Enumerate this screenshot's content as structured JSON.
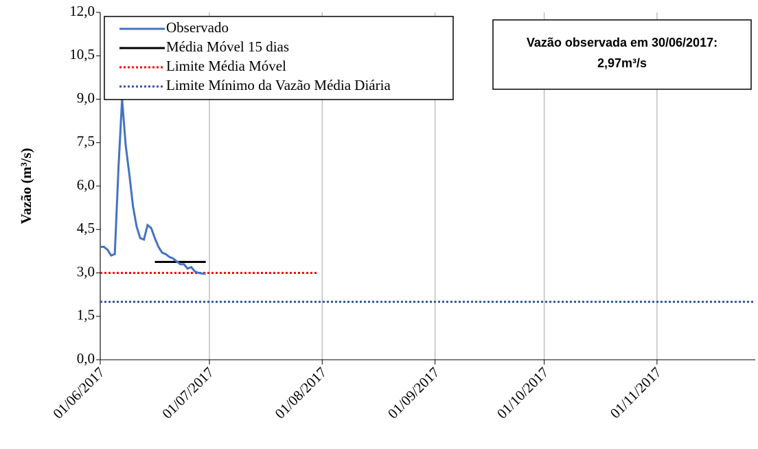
{
  "chart_data": {
    "type": "line",
    "y_label": "Vazão (m³/s)",
    "annotation": [
      "Vazão observada em 30/06/2017:",
      "2,97m³/s"
    ],
    "annotation_color": "#ff0000",
    "xlim": [
      "2017-06-01",
      "2017-11-28"
    ],
    "xticks": [
      {
        "value": "2017-06-01",
        "label": "01/06/2017"
      },
      {
        "value": "2017-07-01",
        "label": "01/07/2017"
      },
      {
        "value": "2017-08-01",
        "label": "01/08/2017"
      },
      {
        "value": "2017-09-01",
        "label": "01/09/2017"
      },
      {
        "value": "2017-10-01",
        "label": "01/10/2017"
      },
      {
        "value": "2017-11-01",
        "label": "01/11/2017"
      }
    ],
    "ylim": [
      0,
      12
    ],
    "yticks": [
      {
        "value": 0,
        "label": "0,0"
      },
      {
        "value": 1.5,
        "label": "1,5"
      },
      {
        "value": 3,
        "label": "3,0"
      },
      {
        "value": 4.5,
        "label": "4,5"
      },
      {
        "value": 6,
        "label": "6,0"
      },
      {
        "value": 7.5,
        "label": "7,5"
      },
      {
        "value": 9,
        "label": "9,0"
      },
      {
        "value": 10.5,
        "label": "10,5"
      },
      {
        "value": 12,
        "label": "12,0"
      }
    ],
    "grid": "x",
    "legend": "top-left",
    "series": [
      {
        "name": "Observado",
        "color": "#4472c4",
        "style": "solid",
        "x": [
          "2017-06-01",
          "2017-06-02",
          "2017-06-03",
          "2017-06-04",
          "2017-06-05",
          "2017-06-06",
          "2017-06-07",
          "2017-06-08",
          "2017-06-09",
          "2017-06-10",
          "2017-06-11",
          "2017-06-12",
          "2017-06-13",
          "2017-06-14",
          "2017-06-15",
          "2017-06-16",
          "2017-06-17",
          "2017-06-18",
          "2017-06-19",
          "2017-06-20",
          "2017-06-21",
          "2017-06-22",
          "2017-06-23",
          "2017-06-24",
          "2017-06-25",
          "2017-06-26",
          "2017-06-27",
          "2017-06-28",
          "2017-06-29",
          "2017-06-30"
        ],
        "values": [
          3.9,
          3.9,
          3.8,
          3.6,
          3.65,
          6.6,
          9.0,
          7.4,
          6.4,
          5.3,
          4.6,
          4.2,
          4.15,
          4.65,
          4.55,
          4.2,
          3.9,
          3.7,
          3.65,
          3.55,
          3.5,
          3.4,
          3.3,
          3.3,
          3.15,
          3.2,
          3.05,
          3.0,
          2.98,
          2.97
        ]
      },
      {
        "name": "Média Móvel 15 dias",
        "color": "#000000",
        "style": "solid",
        "x": [
          "2017-06-16",
          "2017-06-30"
        ],
        "values": [
          3.38,
          3.38
        ]
      },
      {
        "name": "Limite Média Móvel",
        "color": "#ff0000",
        "style": "dotted",
        "x": [
          "2017-06-01",
          "2017-07-31"
        ],
        "values": [
          3.0,
          3.0
        ]
      },
      {
        "name": "Limite Mínimo da Vazão Média Diária",
        "color": "#2f55a0",
        "style": "dotted",
        "x": [
          "2017-06-01",
          "2017-11-28"
        ],
        "values": [
          2.0,
          2.0
        ]
      }
    ]
  }
}
